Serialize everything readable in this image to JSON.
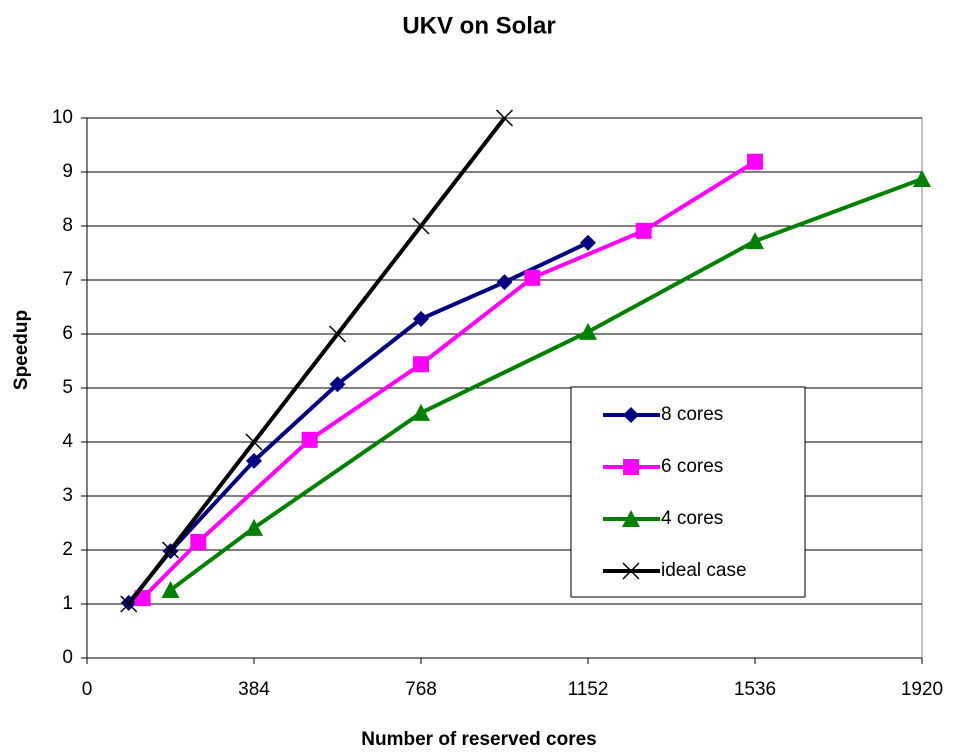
{
  "chart_data": {
    "type": "line",
    "title": "UKV on Solar",
    "x_label": "Number of reserved cores",
    "y_label": "Speedup",
    "xlim": [
      0,
      1920
    ],
    "xticks": [
      0,
      384,
      768,
      1152,
      1536,
      1920
    ],
    "ylim": [
      0,
      10
    ],
    "yticks": [
      0,
      1,
      2,
      3,
      4,
      5,
      6,
      7,
      8,
      9,
      10
    ],
    "grid": true,
    "legend": "lower-right",
    "series": [
      {
        "name": "8 cores",
        "color": "#000080",
        "marker": "diamond",
        "x": [
          96,
          192,
          384,
          576,
          768,
          960,
          1152
        ],
        "values": [
          1.02,
          1.98,
          3.65,
          5.07,
          6.28,
          6.96,
          7.69
        ]
      },
      {
        "name": "6 cores",
        "color": "#ff00ff",
        "marker": "square",
        "x": [
          128,
          256,
          512,
          768,
          1024,
          1280,
          1536
        ],
        "values": [
          1.11,
          2.15,
          4.04,
          5.44,
          7.04,
          7.91,
          9.19
        ]
      },
      {
        "name": "4 cores",
        "color": "#008000",
        "marker": "triangle",
        "x": [
          192,
          384,
          768,
          1152,
          1536,
          1920
        ],
        "values": [
          1.26,
          2.41,
          4.54,
          6.04,
          7.72,
          8.87
        ]
      },
      {
        "name": "ideal case",
        "color": "#000000",
        "marker": "x",
        "x": [
          96,
          192,
          384,
          576,
          768,
          960
        ],
        "values": [
          1,
          2,
          4,
          6,
          8,
          10
        ]
      }
    ]
  }
}
